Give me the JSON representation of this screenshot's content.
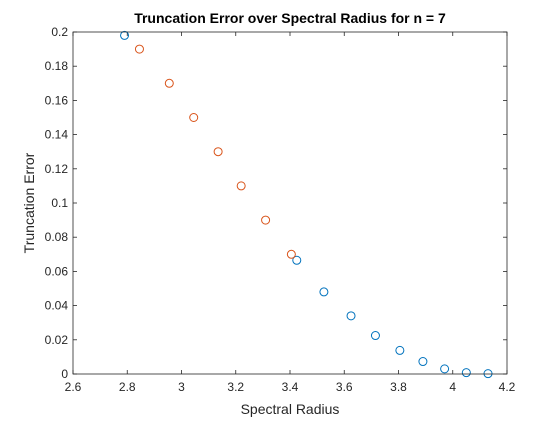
{
  "chart_data": {
    "type": "scatter",
    "title": "Truncation Error over Spectral Radius for n = 7",
    "xlabel": "Spectral Radius",
    "ylabel": "Truncation Error",
    "xlim": [
      2.6,
      4.2
    ],
    "ylim": [
      0,
      0.2
    ],
    "xticks": [
      "2.6",
      "2.8",
      "3",
      "3.2",
      "3.4",
      "3.6",
      "3.8",
      "4",
      "4.2"
    ],
    "yticks": [
      "0",
      "0.02",
      "0.04",
      "0.06",
      "0.08",
      "0.1",
      "0.12",
      "0.14",
      "0.16",
      "0.18",
      "0.2"
    ],
    "grid": false,
    "marker": "circle-open",
    "series": [
      {
        "color": "#0072BD",
        "x": [
          2.79,
          3.425,
          3.525,
          3.625,
          3.715,
          3.805,
          3.89,
          3.97,
          4.05,
          4.13
        ],
        "y": [
          0.198,
          0.0665,
          0.048,
          0.034,
          0.0225,
          0.0138,
          0.0073,
          0.003,
          0.0008,
          0.0002
        ]
      },
      {
        "color": "#D95319",
        "x": [
          2.845,
          2.955,
          3.045,
          3.135,
          3.22,
          3.31,
          3.405
        ],
        "y": [
          0.19,
          0.17,
          0.15,
          0.13,
          0.11,
          0.09,
          0.07
        ]
      }
    ]
  }
}
